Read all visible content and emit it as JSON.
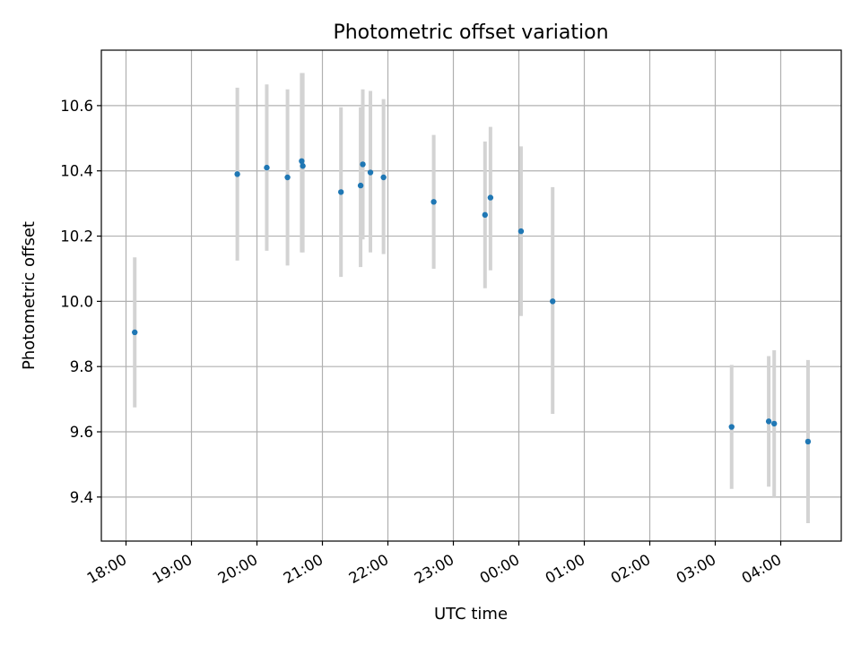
{
  "chart_data": {
    "type": "scatter",
    "title": "Photometric offset variation",
    "xlabel": "UTC time",
    "ylabel": "Photometric offset",
    "x_tick_labels": [
      "18:00",
      "19:00",
      "20:00",
      "21:00",
      "22:00",
      "23:00",
      "00:00",
      "01:00",
      "02:00",
      "03:00",
      "04:00"
    ],
    "y_ticks": [
      9.4,
      9.6,
      9.8,
      10.0,
      10.2,
      10.4,
      10.6
    ],
    "y_tick_labels": [
      "9.4",
      "9.6",
      "9.8",
      "10.0",
      "10.2",
      "10.4",
      "10.6"
    ],
    "ylim": [
      9.265,
      10.77
    ],
    "grid": true,
    "colors": {
      "point": "#1f77b4",
      "errorbar": "#d3d3d3"
    },
    "points": [
      {
        "time": "18:08",
        "y": 9.905,
        "low": 9.675,
        "high": 10.135
      },
      {
        "time": "19:42",
        "y": 10.39,
        "low": 10.125,
        "high": 10.655
      },
      {
        "time": "20:09",
        "y": 10.41,
        "low": 10.155,
        "high": 10.665
      },
      {
        "time": "20:28",
        "y": 10.38,
        "low": 10.11,
        "high": 10.65
      },
      {
        "time": "20:41",
        "y": 10.43,
        "low": 10.15,
        "high": 10.7
      },
      {
        "time": "20:42",
        "y": 10.415,
        "low": 10.15,
        "high": 10.7
      },
      {
        "time": "21:17",
        "y": 10.335,
        "low": 10.075,
        "high": 10.595
      },
      {
        "time": "21:35",
        "y": 10.355,
        "low": 10.105,
        "high": 10.595
      },
      {
        "time": "21:37",
        "y": 10.42,
        "low": 10.19,
        "high": 10.65
      },
      {
        "time": "21:44",
        "y": 10.395,
        "low": 10.15,
        "high": 10.645
      },
      {
        "time": "21:56",
        "y": 10.38,
        "low": 10.145,
        "high": 10.62
      },
      {
        "time": "22:42",
        "y": 10.305,
        "low": 10.1,
        "high": 10.51
      },
      {
        "time": "23:29",
        "y": 10.265,
        "low": 10.04,
        "high": 10.49
      },
      {
        "time": "23:34",
        "y": 10.318,
        "low": 10.095,
        "high": 10.535
      },
      {
        "time": "00:02",
        "y": 10.215,
        "low": 9.955,
        "high": 10.475
      },
      {
        "time": "00:31",
        "y": 10.0,
        "low": 9.655,
        "high": 10.35
      },
      {
        "time": "03:15",
        "y": 9.615,
        "low": 9.425,
        "high": 9.805
      },
      {
        "time": "03:49",
        "y": 9.632,
        "low": 9.432,
        "high": 9.832
      },
      {
        "time": "03:54",
        "y": 9.625,
        "low": 9.4,
        "high": 9.85
      },
      {
        "time": "04:25",
        "y": 9.57,
        "low": 9.32,
        "high": 9.82
      }
    ]
  }
}
